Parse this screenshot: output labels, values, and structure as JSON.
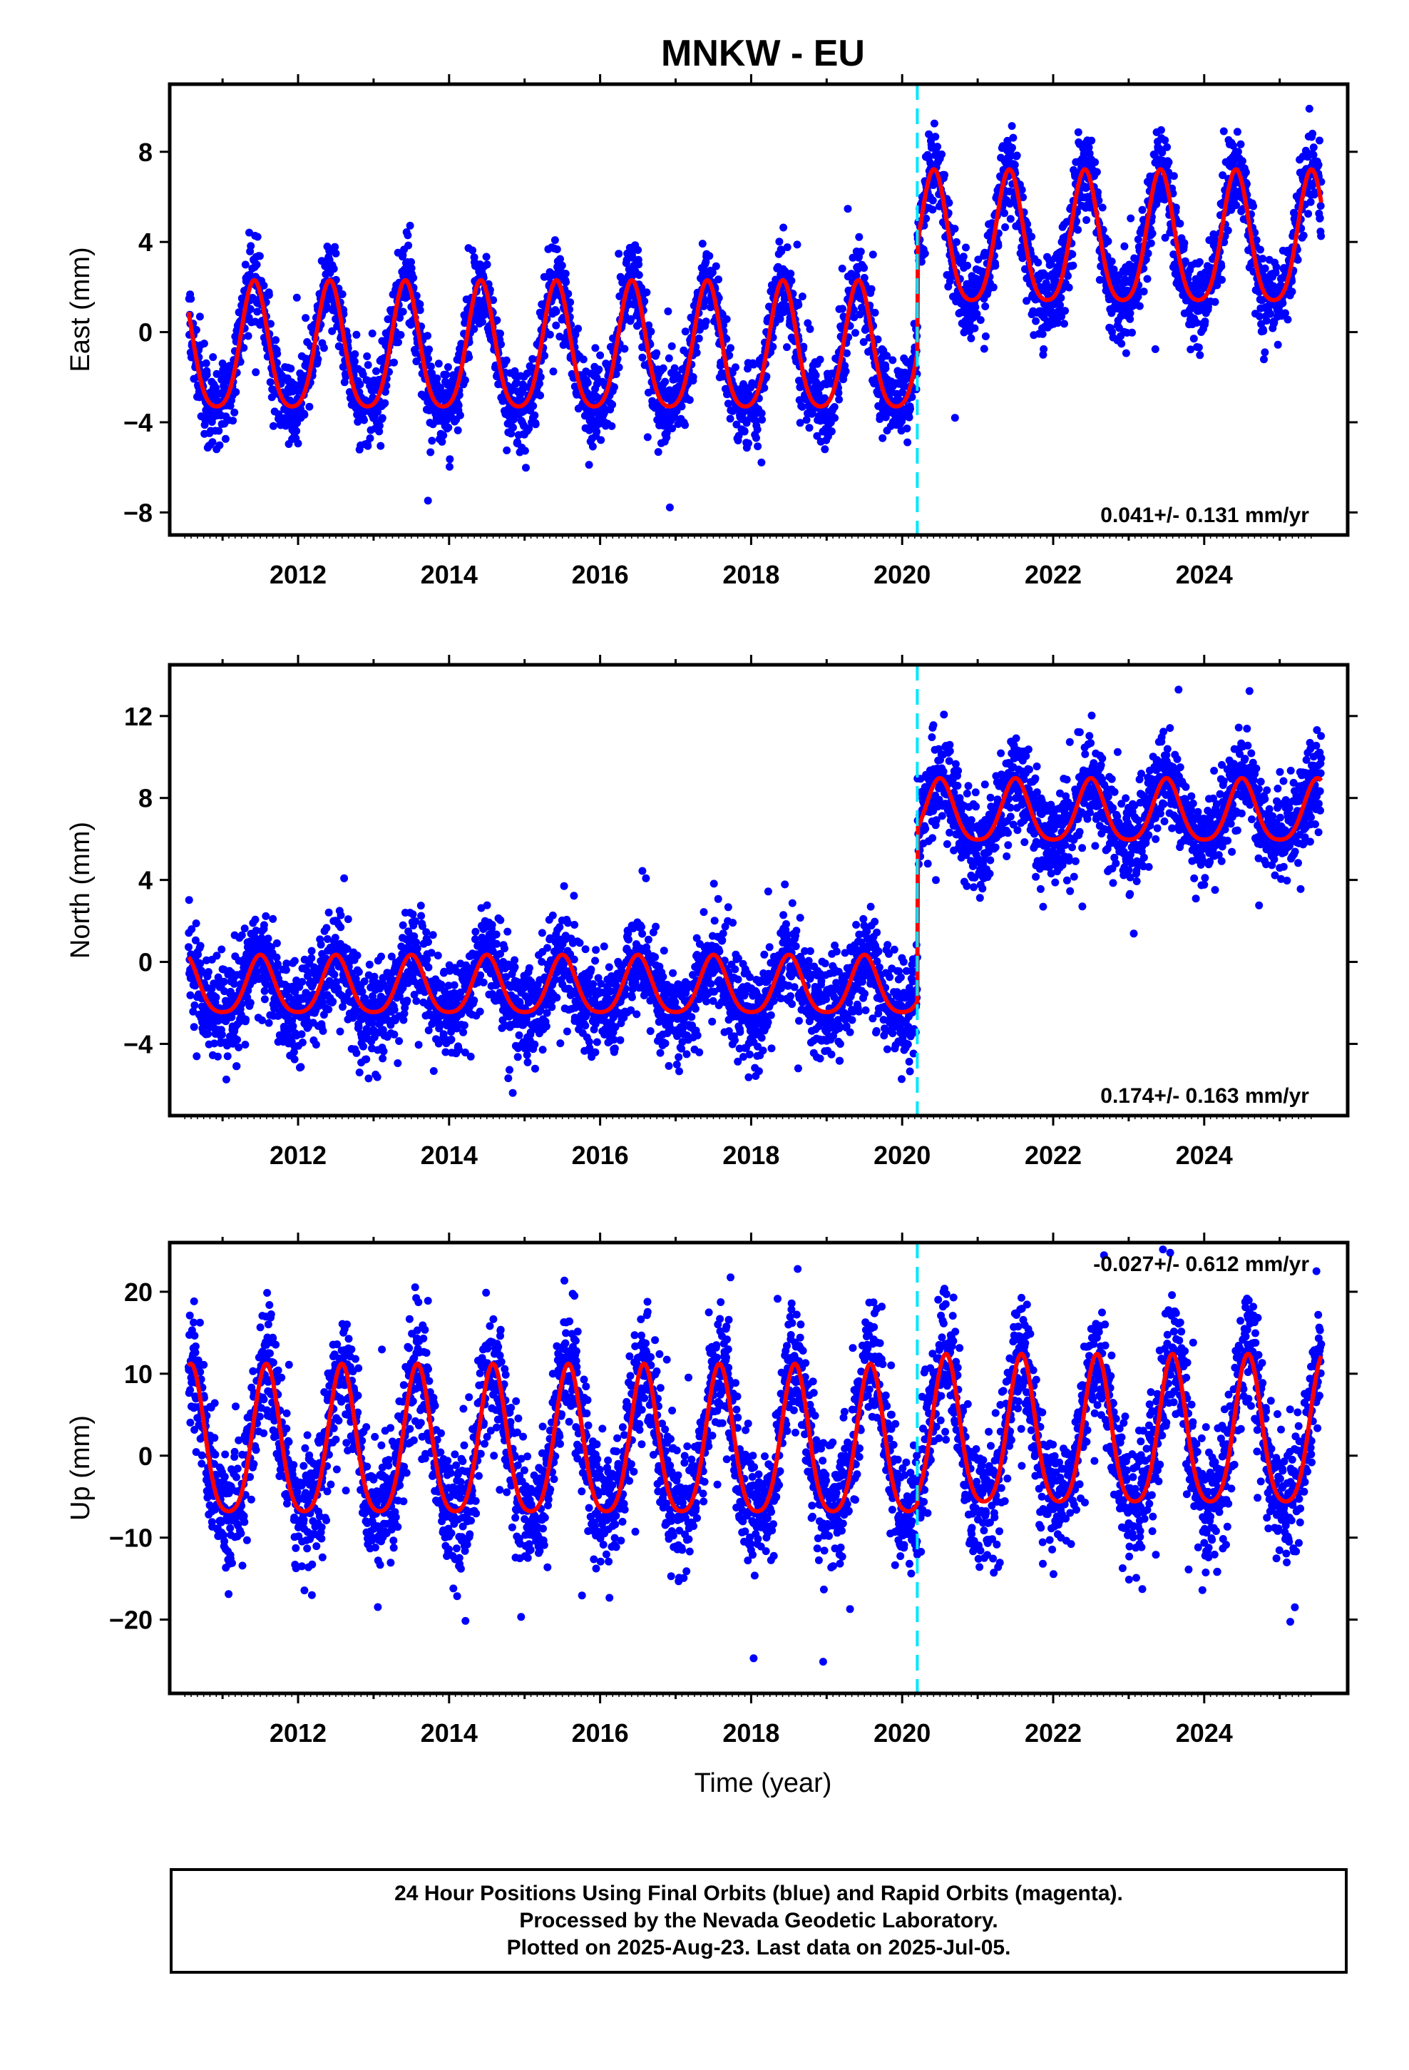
{
  "title": "MNKW - EU",
  "colors": {
    "final_orbits": "#0000ff",
    "fit": "#ff0000",
    "break": "#00e5ff",
    "frame": "#000000"
  },
  "x_axis": {
    "label": "Time (year)",
    "range": [
      2010.3,
      2025.9
    ],
    "ticks": [
      "2012",
      "2014",
      "2016",
      "2018",
      "2020",
      "2022",
      "2024"
    ]
  },
  "footer": {
    "line1": "24 Hour Positions Using Final Orbits (blue) and Rapid Orbits (magenta).",
    "line2": "Processed by the Nevada Geodetic Laboratory.",
    "line3": "Plotted on 2025-Aug-23. Last data on 2025-Jul-05."
  },
  "chart_data": [
    {
      "type": "scatter",
      "component": "east",
      "ylabel": "East (mm)",
      "ylim": [
        -9,
        11
      ],
      "yticks": [
        "8",
        "4",
        "0",
        "−4",
        "−8"
      ],
      "velocity_label": "0.041+/- 0.131 mm/yr",
      "velocity_position": "bottom-right",
      "break_year": 2020.2,
      "x_range": [
        2010.55,
        2025.55
      ],
      "offset_before": -1.0,
      "offset_after": 3.8,
      "seasonal_amplitude_before": 2.8,
      "seasonal_amplitude_after": 2.9,
      "peak_phase": 0.42,
      "scatter_sd": 1.2,
      "series": [
        {
          "name": "Final Orbits",
          "color": "#0000ff",
          "style": "points"
        },
        {
          "name": "Model fit",
          "color": "#ff0000",
          "style": "line"
        }
      ]
    },
    {
      "type": "scatter",
      "component": "north",
      "ylabel": "North (mm)",
      "ylim": [
        -7.5,
        14.5
      ],
      "yticks": [
        "12",
        "8",
        "4",
        "0",
        "−4"
      ],
      "velocity_label": "0.174+/- 0.163 mm/yr",
      "velocity_position": "bottom-right",
      "break_year": 2020.2,
      "x_range": [
        2010.55,
        2025.55
      ],
      "offset_before": -1.3,
      "offset_after": 7.2,
      "seasonal_amplitude_before": 1.4,
      "seasonal_amplitude_after": 1.5,
      "peak_phase": 0.5,
      "scatter_sd": 1.5,
      "series": [
        {
          "name": "Final Orbits",
          "color": "#0000ff",
          "style": "points"
        },
        {
          "name": "Model fit",
          "color": "#ff0000",
          "style": "line"
        }
      ]
    },
    {
      "type": "scatter",
      "component": "up",
      "ylabel": "Up (mm)",
      "ylim": [
        -29,
        26
      ],
      "yticks": [
        "20",
        "10",
        "0",
        "−10",
        "−20"
      ],
      "velocity_label": "-0.027+/- 0.612 mm/yr",
      "velocity_position": "top-right",
      "break_year": 2020.2,
      "x_range": [
        2010.55,
        2025.55
      ],
      "offset_before": 0.6,
      "offset_after": 1.8,
      "seasonal_amplitude_before": 9.0,
      "seasonal_amplitude_after": 9.0,
      "peak_phase": 0.58,
      "scatter_sd": 5.0,
      "series": [
        {
          "name": "Final Orbits",
          "color": "#0000ff",
          "style": "points"
        },
        {
          "name": "Model fit",
          "color": "#ff0000",
          "style": "line"
        }
      ]
    }
  ]
}
